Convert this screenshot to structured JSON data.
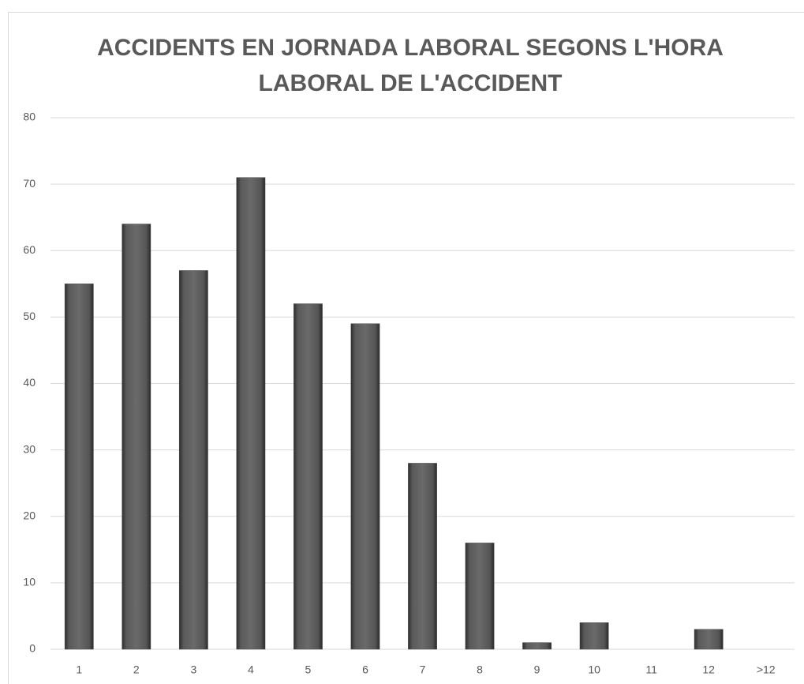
{
  "chart_data": {
    "type": "bar",
    "title": "ACCIDENTS EN JORNADA LABORAL SEGONS L'HORA LABORAL DE L'ACCIDENT",
    "categories": [
      "1",
      "2",
      "3",
      "4",
      "5",
      "6",
      "7",
      "8",
      "9",
      "10",
      "11",
      "12",
      ">12"
    ],
    "values": [
      55,
      64,
      57,
      71,
      52,
      49,
      28,
      16,
      1,
      4,
      0,
      3,
      0
    ],
    "color": "#4d4d4d",
    "ylim": [
      0,
      80
    ],
    "yticks": [
      0,
      10,
      20,
      30,
      40,
      50,
      60,
      70,
      80
    ],
    "grid": true
  }
}
